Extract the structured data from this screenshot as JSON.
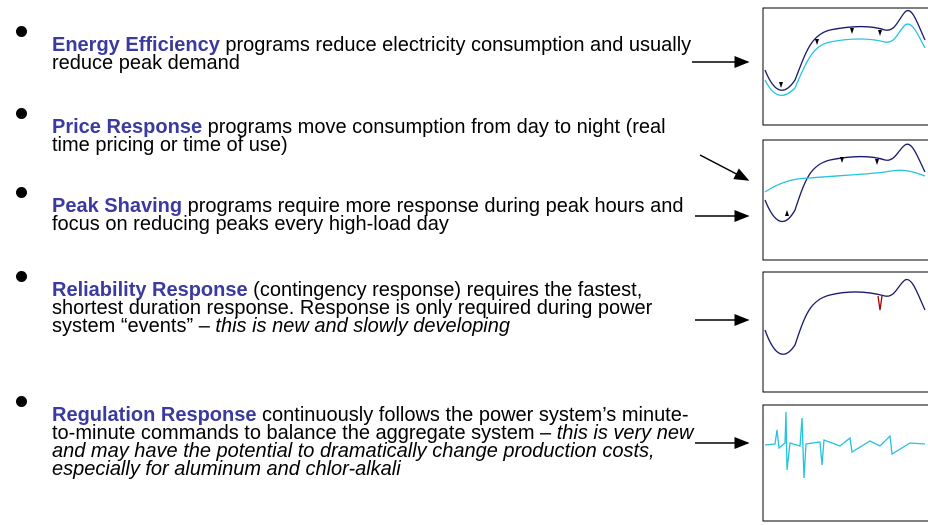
{
  "bullets": [
    {
      "heading": "Energy Efficiency",
      "text": " programs reduce electricity consumption and usually reduce peak demand"
    },
    {
      "heading": "Price Response",
      "text": " programs move consumption from day to night (real time pricing or time of use)"
    },
    {
      "heading": "Peak Shaving",
      "text": " programs require more response during peak hours and focus on reducing peaks every high-load day"
    },
    {
      "heading": "Reliability Response",
      "text": " (contingency response) requires the fastest, shortest duration response. Response is only required during power system “events” – ",
      "italic": "this is new and slowly developing"
    },
    {
      "heading": "Regulation Response",
      "text": " continuously follows the power system’s minute-to-minute commands to balance the aggregate system – ",
      "italic": "this is very new and may have the potential to dramatically change production costs, especially for aluminum and chlor-alkali"
    }
  ]
}
